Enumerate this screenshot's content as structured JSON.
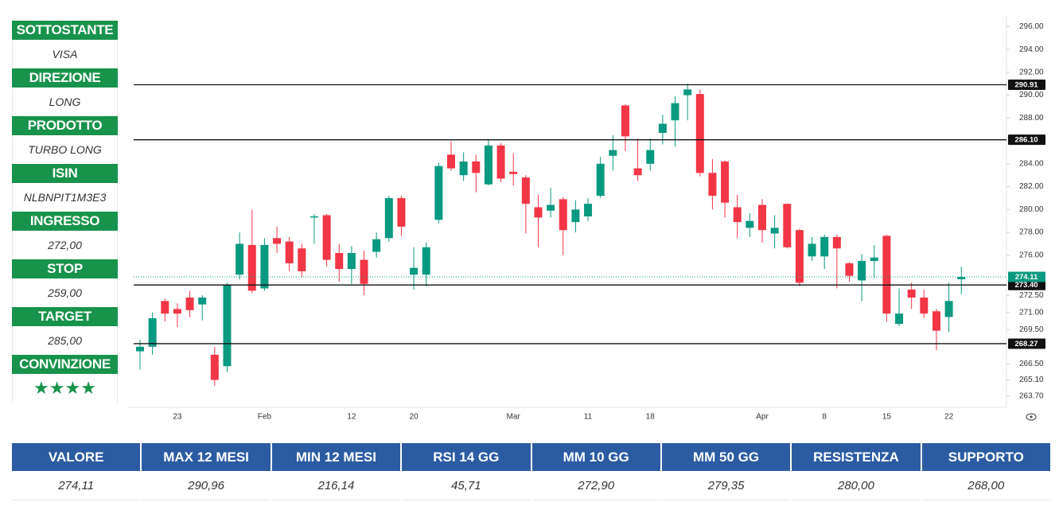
{
  "panel": [
    {
      "label": "SOTTOSTANTE",
      "value": "VISA"
    },
    {
      "label": "DIREZIONE",
      "value": "LONG"
    },
    {
      "label": "PRODOTTO",
      "value": "TURBO LONG"
    },
    {
      "label": "ISIN",
      "value": "NLBNPIT1M3E3"
    },
    {
      "label": "INGRESSO",
      "value": "272,00"
    },
    {
      "label": "STOP",
      "value": "259,00"
    },
    {
      "label": "TARGET",
      "value": "285,00"
    },
    {
      "label": "CONVINZIONE",
      "value": "★★★★"
    }
  ],
  "chart_data": {
    "type": "candlestick",
    "categories": [
      null,
      null,
      null,
      "23",
      null,
      null,
      null,
      null,
      null,
      null,
      "Feb",
      null,
      null,
      null,
      null,
      null,
      null,
      "12",
      null,
      null,
      null,
      null,
      "20",
      null,
      null,
      null,
      null,
      null,
      null,
      null,
      "Mar",
      null,
      null,
      null,
      null,
      null,
      "11",
      null,
      null,
      null,
      null,
      "18",
      null,
      null,
      null,
      null,
      null,
      null,
      null,
      null,
      "Apr",
      null,
      null,
      null,
      null,
      "8",
      null,
      null,
      null,
      null,
      "15",
      null,
      null,
      null,
      null,
      "22",
      null
    ],
    "open": [
      267.6,
      268.0,
      272.0,
      271.3,
      272.3,
      271.7,
      267.3,
      266.3,
      274.3,
      276.9,
      273.1,
      277.5,
      277.2,
      276.6,
      279.3,
      279.5,
      276.2,
      274.8,
      275.6,
      276.3,
      277.5,
      281.0,
      274.3,
      274.3,
      279.1,
      284.8,
      283.0,
      284.2,
      282.2,
      285.6,
      283.3,
      282.8,
      280.2,
      279.9,
      280.9,
      278.9,
      279.4,
      281.2,
      284.7,
      289.1,
      283.6,
      284.0,
      286.7,
      287.8,
      290.0,
      290.1,
      283.2,
      284.2,
      280.2,
      278.4,
      280.4,
      277.9,
      280.5,
      278.2,
      275.9,
      275.9,
      277.6,
      275.3,
      273.8,
      275.5,
      277.7,
      270.0,
      273.0,
      272.3,
      271.1,
      270.6,
      273.9
    ],
    "high": [
      268.6,
      271.0,
      272.2,
      271.8,
      272.9,
      272.5,
      268.0,
      273.6,
      278.0,
      280.0,
      277.5,
      278.5,
      277.6,
      277.0,
      279.6,
      279.6,
      277.0,
      276.8,
      276.4,
      278.0,
      281.2,
      281.2,
      276.7,
      277.1,
      284.1,
      286.0,
      285.0,
      284.8,
      286.1,
      285.8,
      284.9,
      283.0,
      281.3,
      281.9,
      281.1,
      280.8,
      281.0,
      284.6,
      286.5,
      289.2,
      286.2,
      286.2,
      288.3,
      289.9,
      291.0,
      290.5,
      284.4,
      284.3,
      281.3,
      279.7,
      280.9,
      279.5,
      280.5,
      278.3,
      277.6,
      277.8,
      277.8,
      275.4,
      276.1,
      276.9,
      277.8,
      273.1,
      273.6,
      273.0,
      271.3,
      273.6,
      275.0
    ],
    "low": [
      266.0,
      267.3,
      270.2,
      269.7,
      270.6,
      270.3,
      264.6,
      265.8,
      273.9,
      272.7,
      272.9,
      276.2,
      274.6,
      274.1,
      277.0,
      275.0,
      273.7,
      273.5,
      272.5,
      275.8,
      277.2,
      277.7,
      273.0,
      273.3,
      278.8,
      283.4,
      282.5,
      281.5,
      282.1,
      282.4,
      282.1,
      277.9,
      276.7,
      279.3,
      276.0,
      278.0,
      279.0,
      281.0,
      283.4,
      285.1,
      282.5,
      283.4,
      285.7,
      285.5,
      287.8,
      282.9,
      280.0,
      279.3,
      277.5,
      277.6,
      277.1,
      276.6,
      276.6,
      273.3,
      275.5,
      274.8,
      273.1,
      273.7,
      272.0,
      274.0,
      270.2,
      269.8,
      271.3,
      270.5,
      267.7,
      269.3,
      272.6
    ],
    "close": [
      268.0,
      270.5,
      270.9,
      270.9,
      271.2,
      272.3,
      265.1,
      273.4,
      277.0,
      272.9,
      276.9,
      277.0,
      275.3,
      274.6,
      279.4,
      275.6,
      274.8,
      276.2,
      273.5,
      277.4,
      281.0,
      278.5,
      274.9,
      276.7,
      283.8,
      283.6,
      284.2,
      283.2,
      285.6,
      282.7,
      283.1,
      280.5,
      279.3,
      280.4,
      278.2,
      280.0,
      280.5,
      284.0,
      285.2,
      286.4,
      283.0,
      285.2,
      287.5,
      289.3,
      290.5,
      283.2,
      281.2,
      280.6,
      278.9,
      279.0,
      278.2,
      278.4,
      276.7,
      273.6,
      277.0,
      277.6,
      276.6,
      274.2,
      275.5,
      275.8,
      270.9,
      270.9,
      272.3,
      270.9,
      269.4,
      272.0,
      274.1
    ],
    "up_color": "#089981",
    "down_color": "#f23645",
    "ylim": [
      262.7,
      296.93
    ],
    "yticks": [
      {
        "value": 296,
        "label": "296.00"
      },
      {
        "value": 294,
        "label": "294.00"
      },
      {
        "value": 292,
        "label": "292.00"
      },
      {
        "value": 290,
        "label": "290.00"
      },
      {
        "value": 288,
        "label": "288.00"
      },
      {
        "value": 284,
        "label": "284.00"
      },
      {
        "value": 282,
        "label": "282.00"
      },
      {
        "value": 280,
        "label": "280.00"
      },
      {
        "value": 278,
        "label": "278.00"
      },
      {
        "value": 276,
        "label": "276.00"
      },
      {
        "value": 272.5,
        "label": "272.50"
      },
      {
        "value": 271,
        "label": "271.00"
      },
      {
        "value": 269.5,
        "label": "269.50"
      },
      {
        "value": 266.5,
        "label": "266.50"
      },
      {
        "value": 265.1,
        "label": "265.10"
      },
      {
        "value": 263.7,
        "label": "263.70"
      }
    ],
    "levels": [
      {
        "value": 290.91,
        "label": "290.91"
      },
      {
        "value": 286.1,
        "label": "286.10"
      },
      {
        "value": 273.4,
        "label": "273.40"
      },
      {
        "value": 268.27,
        "label": "268.27"
      }
    ],
    "last_price": {
      "value": 274.11,
      "label": "274.11"
    },
    "grid": false
  },
  "table": {
    "headers": [
      "VALORE",
      "MAX 12 MESI",
      "MIN 12 MESI",
      "RSI 14 GG",
      "MM 10 GG",
      "MM 50 GG",
      "RESISTENZA",
      "SUPPORTO"
    ],
    "values": [
      "274,11",
      "290,96",
      "216,14",
      "45,71",
      "272,90",
      "279,35",
      "280,00",
      "268,00"
    ]
  }
}
